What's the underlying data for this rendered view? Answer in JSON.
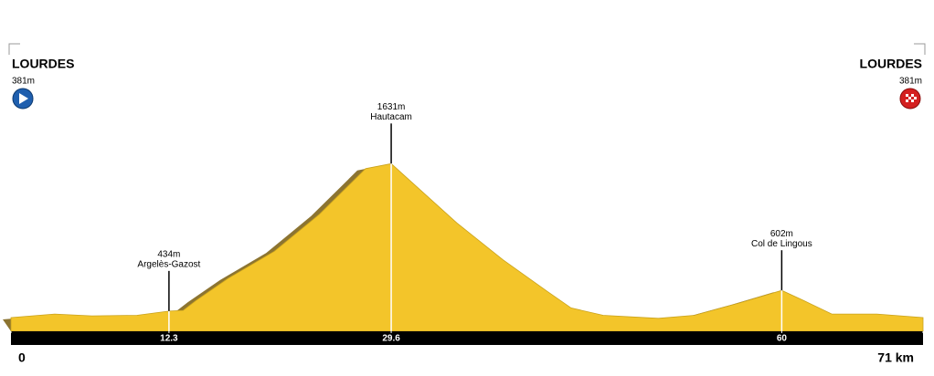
{
  "chart_data": {
    "type": "area",
    "x": [
      0,
      3.4,
      6.3,
      9.8,
      12.3,
      13.4,
      14.4,
      16.9,
      20.5,
      24.0,
      27.6,
      29.6,
      31.2,
      34.7,
      38.3,
      41.8,
      43.6,
      46.1,
      50.4,
      53.2,
      56.7,
      60,
      61.7,
      63.9,
      67.4,
      71
    ],
    "series": [
      {
        "color": "#f3c52a",
        "values": [
          381,
          410,
          395,
          400,
          434,
          440,
          520,
          700,
          920,
          1220,
          1590,
          1631,
          1480,
          1150,
          850,
          590,
          460,
          400,
          375,
          400,
          500,
          602,
          520,
          410,
          410,
          381
        ]
      }
    ],
    "xlim": [
      0,
      71
    ],
    "ylim": [
      270,
      1900
    ],
    "xticks": [
      0,
      12.3,
      29.6,
      60,
      {
        "value": 71,
        "label": "71 km"
      }
    ],
    "start": {
      "name": "LOURDES",
      "elevation": {
        "value": 381,
        "label": "381m"
      }
    },
    "finish": {
      "name": "LOURDES",
      "elevation": {
        "value": 381,
        "label": "381m"
      }
    },
    "annotations": [
      {
        "x": 12.3,
        "elevation": {
          "value": 434,
          "label": "434m"
        },
        "name": "Argelès-Gazost"
      },
      {
        "x": 29.6,
        "elevation": {
          "value": 1631,
          "label": "1631m"
        },
        "name": "Hautacam"
      },
      {
        "x": 60,
        "elevation": {
          "value": 602,
          "label": "602m"
        },
        "name": "Col de Lingous"
      }
    ]
  }
}
